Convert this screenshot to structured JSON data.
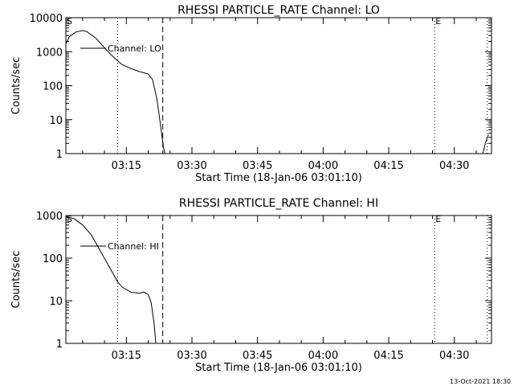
{
  "footer_timestamp": "13-Oct-2021 18:30",
  "chart_data": [
    {
      "type": "line",
      "title": "RHESSI PARTICLE_RATE Channel: LO",
      "xlabel": "Start Time (18-Jan-06 03:01:10)",
      "ylabel": "Counts/sec",
      "yscale": "log",
      "ylim": [
        1,
        10000
      ],
      "yticks": [
        {
          "value": 1,
          "label": "1"
        },
        {
          "value": 10,
          "label": "10"
        },
        {
          "value": 100,
          "label": "100"
        },
        {
          "value": 1000,
          "label": "1000"
        },
        {
          "value": 10000,
          "label": "10000"
        }
      ],
      "xlim": [
        "03:01:10",
        "04:38:30"
      ],
      "xticks": [
        "03:15",
        "03:30",
        "03:45",
        "04:00",
        "04:15",
        "04:30"
      ],
      "legend": {
        "label": "Channel: LO",
        "position": "top-left"
      },
      "markers": [
        {
          "label": "S",
          "time": "03:01:10"
        },
        {
          "label": "E",
          "time": "04:25:30"
        }
      ],
      "vlines": [
        {
          "time": "03:13:00",
          "style": "dotted"
        },
        {
          "time": "03:23:20",
          "style": "dashed"
        },
        {
          "time": "04:25:30",
          "style": "dotted"
        },
        {
          "time": "04:37:30",
          "style": "dotted"
        }
      ],
      "series": [
        {
          "name": "Channel: LO",
          "segments": [
            [
              {
                "t": "03:01:10",
                "y": 1700
              },
              {
                "t": "03:02:00",
                "y": 2800
              },
              {
                "t": "03:03:30",
                "y": 3800
              },
              {
                "t": "03:05:00",
                "y": 4200
              },
              {
                "t": "03:06:00",
                "y": 3900
              },
              {
                "t": "03:08:00",
                "y": 2500
              },
              {
                "t": "03:10:00",
                "y": 1300
              },
              {
                "t": "03:12:00",
                "y": 700
              },
              {
                "t": "03:14:00",
                "y": 420
              },
              {
                "t": "03:16:00",
                "y": 320
              },
              {
                "t": "03:18:00",
                "y": 260
              },
              {
                "t": "03:20:00",
                "y": 220
              },
              {
                "t": "03:21:00",
                "y": 150
              },
              {
                "t": "03:22:00",
                "y": 40
              },
              {
                "t": "03:22:45",
                "y": 8
              },
              {
                "t": "03:23:30",
                "y": 1.5
              },
              {
                "t": "03:23:50",
                "y": 1
              }
            ],
            [
              {
                "t": "04:36:30",
                "y": 1
              },
              {
                "t": "04:37:00",
                "y": 1.8
              },
              {
                "t": "04:37:30",
                "y": 3.0
              },
              {
                "t": "04:37:50",
                "y": 3.6
              }
            ]
          ]
        }
      ]
    },
    {
      "type": "line",
      "title": "RHESSI PARTICLE_RATE Channel: HI",
      "xlabel": "Start Time (18-Jan-06 03:01:10)",
      "ylabel": "Counts/sec",
      "yscale": "log",
      "ylim": [
        1,
        1000
      ],
      "yticks": [
        {
          "value": 1,
          "label": "1"
        },
        {
          "value": 10,
          "label": "10"
        },
        {
          "value": 100,
          "label": "100"
        },
        {
          "value": 1000,
          "label": "1000"
        }
      ],
      "xlim": [
        "03:01:10",
        "04:38:30"
      ],
      "xticks": [
        "03:15",
        "03:30",
        "03:45",
        "04:00",
        "04:15",
        "04:30"
      ],
      "legend": {
        "label": "Channel: HI",
        "position": "top-left"
      },
      "markers": [
        {
          "label": "S",
          "time": "03:01:10"
        },
        {
          "label": "E",
          "time": "04:25:30"
        }
      ],
      "vlines": [
        {
          "time": "03:13:00",
          "style": "dotted"
        },
        {
          "time": "03:23:20",
          "style": "dashed"
        },
        {
          "time": "04:25:30",
          "style": "dotted"
        },
        {
          "time": "04:37:30",
          "style": "dotted"
        }
      ],
      "series": [
        {
          "name": "Channel: HI",
          "segments": [
            [
              {
                "t": "03:01:10",
                "y": 950
              },
              {
                "t": "03:03:00",
                "y": 850
              },
              {
                "t": "03:05:00",
                "y": 600
              },
              {
                "t": "03:07:00",
                "y": 350
              },
              {
                "t": "03:09:00",
                "y": 150
              },
              {
                "t": "03:11:00",
                "y": 65
              },
              {
                "t": "03:13:00",
                "y": 28
              },
              {
                "t": "03:14:00",
                "y": 21
              },
              {
                "t": "03:16:00",
                "y": 16
              },
              {
                "t": "03:18:00",
                "y": 15
              },
              {
                "t": "03:19:00",
                "y": 16
              },
              {
                "t": "03:20:00",
                "y": 14
              },
              {
                "t": "03:20:40",
                "y": 9
              },
              {
                "t": "03:21:20",
                "y": 3
              },
              {
                "t": "03:21:45",
                "y": 1
              }
            ]
          ]
        }
      ]
    }
  ]
}
